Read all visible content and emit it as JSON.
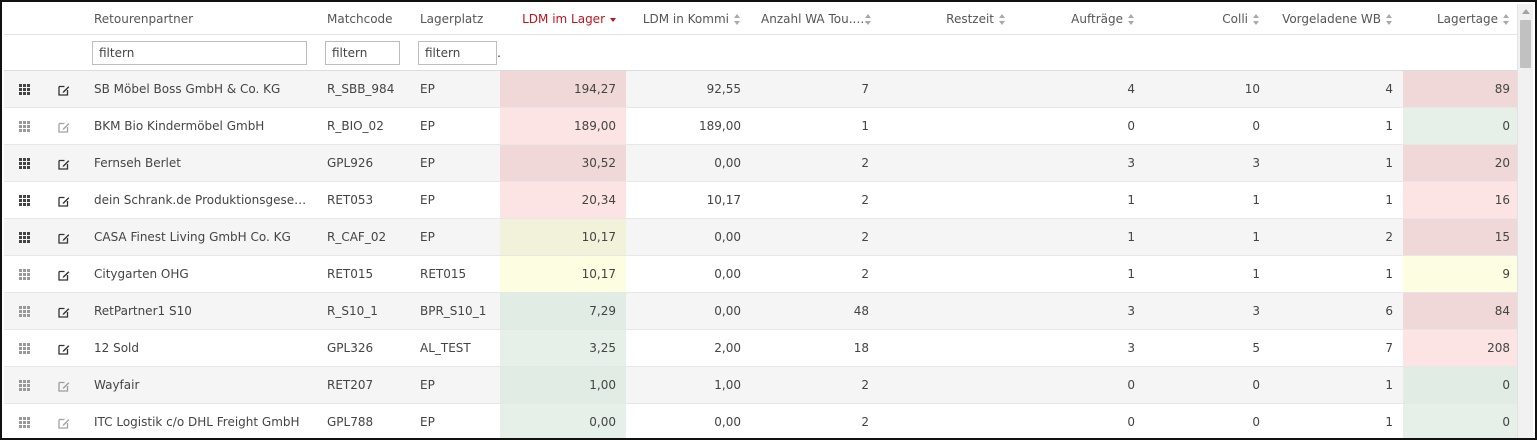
{
  "columns": {
    "retourenpartner": "Retourenpartner",
    "matchcode": "Matchcode",
    "lagerplatz": "Lagerplatz",
    "ldm_lager": "LDM im Lager",
    "ldm_kommi": "LDM in Kommi",
    "anzahl_wa": "Anzahl WA Tou...",
    "restzeit": "Restzeit",
    "auftraege": "Aufträge",
    "colli": "Colli",
    "vorgeladene": "Vorgeladene WB",
    "lagertage": "Lagertage"
  },
  "filters": {
    "placeholder": "filtern"
  },
  "colors": {
    "red_dark": "#f0d8d8",
    "red_light": "#fce4e4",
    "yellow_dark": "#f2f2db",
    "yellow_light": "#fdfde2",
    "green": "#e0ece4",
    "green_light": "#e6efe8",
    "active_sort": "#c0131d"
  },
  "rows": [
    {
      "grid_dim": false,
      "edit_dim": false,
      "partner": "SB Möbel Boss GmbH & Co. KG",
      "matchcode": "R_SBB_984",
      "lagerplatz": "EP",
      "ldm_lager": "194,27",
      "ldm_lager_bg": "#f0d8d8",
      "ldm_kommi": "92,55",
      "anzahl_wa": "7",
      "restzeit": "",
      "auftraege": "4",
      "colli": "10",
      "vorgeladene": "4",
      "lagertage": "89",
      "lagertage_bg": "#f0d8d8"
    },
    {
      "grid_dim": true,
      "edit_dim": true,
      "partner": "BKM Bio Kindermöbel GmbH",
      "matchcode": "R_BIO_02",
      "lagerplatz": "EP",
      "ldm_lager": "189,00",
      "ldm_lager_bg": "#fce4e4",
      "ldm_kommi": "189,00",
      "anzahl_wa": "1",
      "restzeit": "",
      "auftraege": "0",
      "colli": "0",
      "vorgeladene": "1",
      "lagertage": "0",
      "lagertage_bg": "#e6efe8"
    },
    {
      "grid_dim": false,
      "edit_dim": false,
      "partner": "Fernseh Berlet",
      "matchcode": "GPL926",
      "lagerplatz": "EP",
      "ldm_lager": "30,52",
      "ldm_lager_bg": "#f0d8d8",
      "ldm_kommi": "0,00",
      "anzahl_wa": "2",
      "restzeit": "",
      "auftraege": "3",
      "colli": "3",
      "vorgeladene": "1",
      "lagertage": "20",
      "lagertage_bg": "#f0d8d8"
    },
    {
      "grid_dim": false,
      "edit_dim": false,
      "partner": "dein Schrank.de Produktionsgesellschaft mbH",
      "matchcode": "RET053",
      "lagerplatz": "EP",
      "ldm_lager": "20,34",
      "ldm_lager_bg": "#fce4e4",
      "ldm_kommi": "10,17",
      "anzahl_wa": "2",
      "restzeit": "",
      "auftraege": "1",
      "colli": "1",
      "vorgeladene": "1",
      "lagertage": "16",
      "lagertage_bg": "#fce4e4"
    },
    {
      "grid_dim": false,
      "edit_dim": false,
      "partner": "CASA Finest Living GmbH Co. KG",
      "matchcode": "R_CAF_02",
      "lagerplatz": "EP",
      "ldm_lager": "10,17",
      "ldm_lager_bg": "#f2f2db",
      "ldm_kommi": "0,00",
      "anzahl_wa": "2",
      "restzeit": "",
      "auftraege": "1",
      "colli": "1",
      "vorgeladene": "2",
      "lagertage": "15",
      "lagertage_bg": "#f0d8d8"
    },
    {
      "grid_dim": true,
      "edit_dim": false,
      "partner": "Citygarten OHG",
      "matchcode": "RET015",
      "lagerplatz": "RET015",
      "ldm_lager": "10,17",
      "ldm_lager_bg": "#fdfde2",
      "ldm_kommi": "0,00",
      "anzahl_wa": "2",
      "restzeit": "",
      "auftraege": "1",
      "colli": "1",
      "vorgeladene": "1",
      "lagertage": "9",
      "lagertage_bg": "#fdfde2"
    },
    {
      "grid_dim": true,
      "edit_dim": false,
      "partner": "RetPartner1 S10",
      "matchcode": "R_S10_1",
      "lagerplatz": "BPR_S10_1",
      "ldm_lager": "7,29",
      "ldm_lager_bg": "#e0ece4",
      "ldm_kommi": "0,00",
      "anzahl_wa": "48",
      "restzeit": "",
      "auftraege": "3",
      "colli": "3",
      "vorgeladene": "6",
      "lagertage": "84",
      "lagertage_bg": "#f0d8d8"
    },
    {
      "grid_dim": true,
      "edit_dim": false,
      "partner": "12 Sold",
      "matchcode": "GPL326",
      "lagerplatz": "AL_TEST",
      "ldm_lager": "3,25",
      "ldm_lager_bg": "#e6efe8",
      "ldm_kommi": "2,00",
      "anzahl_wa": "18",
      "restzeit": "",
      "auftraege": "3",
      "colli": "5",
      "vorgeladene": "7",
      "lagertage": "208",
      "lagertage_bg": "#fce4e4"
    },
    {
      "grid_dim": true,
      "edit_dim": true,
      "partner": "Wayfair",
      "matchcode": "RET207",
      "lagerplatz": "EP",
      "ldm_lager": "1,00",
      "ldm_lager_bg": "#e0ece4",
      "ldm_kommi": "1,00",
      "anzahl_wa": "2",
      "restzeit": "",
      "auftraege": "0",
      "colli": "0",
      "vorgeladene": "1",
      "lagertage": "0",
      "lagertage_bg": "#e0ece4"
    },
    {
      "grid_dim": true,
      "edit_dim": true,
      "partner": "ITC Logistik c/o DHL Freight GmbH",
      "matchcode": "GPL788",
      "lagerplatz": "EP",
      "ldm_lager": "0,00",
      "ldm_lager_bg": "#e6efe8",
      "ldm_kommi": "0,00",
      "anzahl_wa": "2",
      "restzeit": "",
      "auftraege": "0",
      "colli": "0",
      "vorgeladene": "1",
      "lagertage": "0",
      "lagertage_bg": "#e6efe8"
    }
  ]
}
